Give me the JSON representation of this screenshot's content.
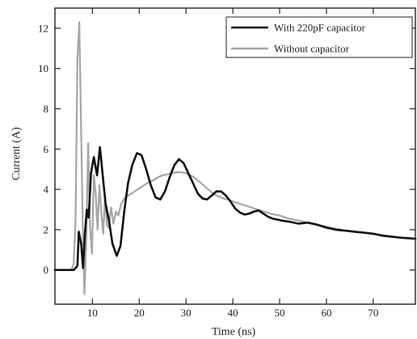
{
  "chart_data": {
    "type": "line",
    "title": "",
    "xlabel": "Time (ns)",
    "ylabel": "Current (A)",
    "xlim": [
      2,
      79
    ],
    "ylim": [
      -1.7,
      13
    ],
    "xticks": [
      10,
      20,
      30,
      40,
      50,
      60,
      70
    ],
    "yticks": [
      0,
      2,
      4,
      6,
      8,
      10,
      12
    ],
    "xtick_labels": [
      "10",
      "20",
      "30",
      "40",
      "50",
      "60",
      "70"
    ],
    "ytick_labels": [
      "0",
      "2",
      "4",
      "6",
      "8",
      "10",
      "12"
    ],
    "grid": false,
    "legend_position": "top-right",
    "series": [
      {
        "name": "With 220pF capacitor",
        "color": "#111111",
        "line_style": "solid",
        "x": [
          2,
          4,
          6,
          6.8,
          7.1,
          7.6,
          8.0,
          8.4,
          8.8,
          9.2,
          9.7,
          10.3,
          11.0,
          11.6,
          12.2,
          12.8,
          13.5,
          14.3,
          15.2,
          16.0,
          16.8,
          17.6,
          18.5,
          19.5,
          20.5,
          21.5,
          22.5,
          23.5,
          24.5,
          25.5,
          26.5,
          27.5,
          28.5,
          29.5,
          30.5,
          31.5,
          32.5,
          33.5,
          34.5,
          35.5,
          36.5,
          37.5,
          38.5,
          39.5,
          40.5,
          41.5,
          42.5,
          43.5,
          44.5,
          45.5,
          46.5,
          47.5,
          48.5,
          49.5,
          50.5,
          52,
          54,
          56,
          58,
          60,
          62,
          64,
          66,
          68,
          70,
          72,
          74,
          76,
          79
        ],
        "y": [
          0,
          0,
          0,
          0.2,
          1.9,
          1.3,
          0.1,
          1.8,
          3.0,
          2.6,
          4.8,
          5.6,
          4.7,
          6.1,
          4.7,
          3.3,
          2.5,
          1.3,
          0.7,
          1.2,
          2.9,
          4.3,
          5.2,
          5.8,
          5.7,
          5.0,
          4.2,
          3.6,
          3.5,
          3.9,
          4.6,
          5.2,
          5.5,
          5.3,
          4.8,
          4.3,
          3.8,
          3.55,
          3.5,
          3.7,
          3.9,
          3.9,
          3.7,
          3.4,
          3.05,
          2.85,
          2.75,
          2.8,
          2.9,
          2.95,
          2.8,
          2.65,
          2.55,
          2.5,
          2.45,
          2.4,
          2.3,
          2.35,
          2.25,
          2.1,
          2.0,
          1.95,
          1.9,
          1.85,
          1.8,
          1.7,
          1.65,
          1.6,
          1.55
        ]
      },
      {
        "name": "Without capacitor",
        "color": "#a6a6a6",
        "line_style": "solid",
        "x": [
          2,
          4,
          5.5,
          6.0,
          6.4,
          6.8,
          7.2,
          7.6,
          8.0,
          8.3,
          8.7,
          9.1,
          9.5,
          9.9,
          10.3,
          10.7,
          11.1,
          11.5,
          11.9,
          12.3,
          12.7,
          13.1,
          13.5,
          14.0,
          14.5,
          15.0,
          15.5,
          16.2,
          17.0,
          18,
          19,
          20,
          21,
          22,
          23,
          24,
          25,
          26,
          27,
          28,
          29,
          30,
          31,
          32,
          33,
          34,
          35,
          36,
          37,
          38,
          39,
          40,
          42,
          44,
          46,
          48,
          50,
          52,
          54,
          56,
          58,
          60,
          62,
          64,
          66,
          68,
          70,
          72,
          74,
          76,
          79
        ],
        "y": [
          0,
          0,
          0,
          0.3,
          2.5,
          10.5,
          12.3,
          7.0,
          1.2,
          -1.2,
          1.6,
          6.3,
          2.2,
          0.8,
          4.7,
          3.8,
          2.0,
          4.2,
          2.9,
          1.8,
          3.7,
          2.2,
          2.1,
          3.1,
          2.3,
          2.9,
          2.7,
          3.3,
          3.6,
          3.75,
          3.9,
          4.05,
          4.2,
          4.35,
          4.45,
          4.6,
          4.7,
          4.75,
          4.8,
          4.85,
          4.85,
          4.8,
          4.7,
          4.55,
          4.35,
          4.15,
          3.95,
          3.75,
          3.65,
          3.55,
          3.5,
          3.4,
          3.25,
          3.1,
          2.95,
          2.8,
          2.7,
          2.55,
          2.45,
          2.35,
          2.25,
          2.15,
          2.05,
          1.95,
          1.9,
          1.85,
          1.8,
          1.72,
          1.66,
          1.6,
          1.55
        ]
      }
    ]
  }
}
